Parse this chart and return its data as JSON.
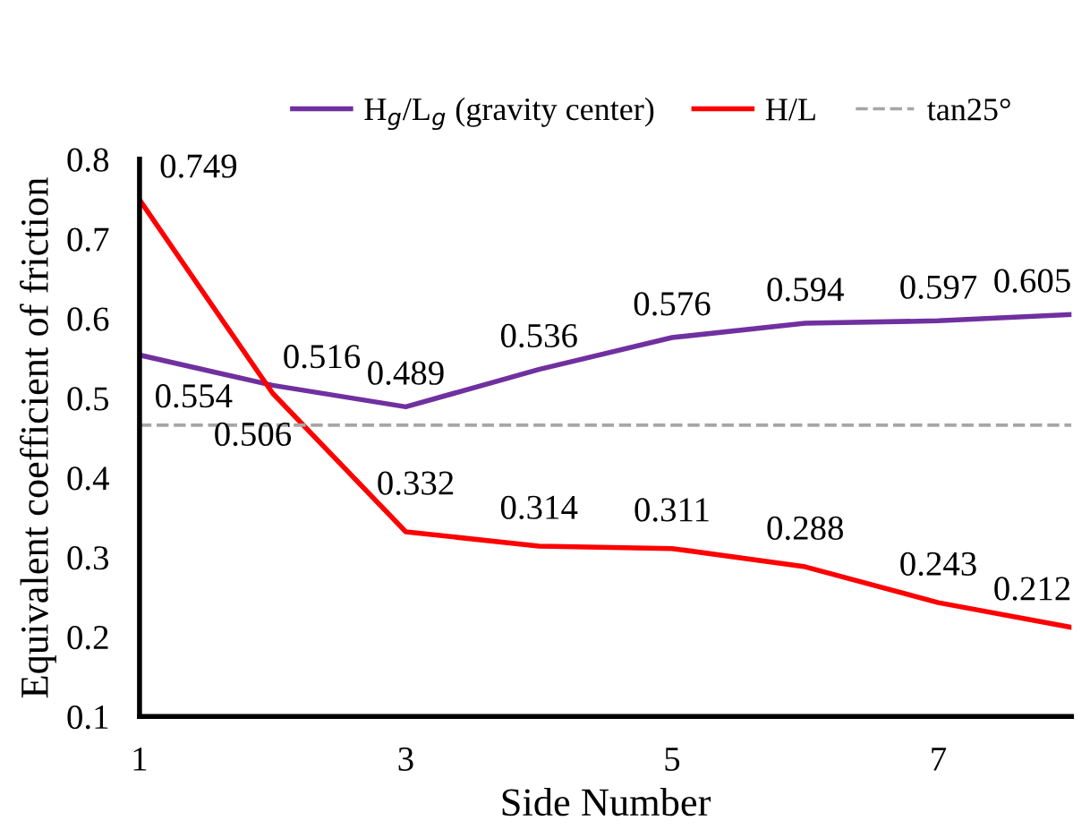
{
  "chart_data": {
    "type": "line",
    "xlabel": "Side Number",
    "ylabel": "Equivalent coefficient of friction",
    "x": [
      1,
      2,
      3,
      4,
      5,
      6,
      7,
      8
    ],
    "series": [
      {
        "name": "H$_{g}$/L$_{g}$ (gravity center)",
        "color": "#7030a0",
        "values": [
          0.554,
          0.516,
          0.489,
          0.536,
          0.576,
          0.594,
          0.597,
          0.605
        ]
      },
      {
        "name": "H/L",
        "color": "#ff0000",
        "values": [
          0.749,
          0.506,
          0.332,
          0.314,
          0.311,
          0.288,
          0.243,
          0.212
        ]
      }
    ],
    "ref_lines": [
      {
        "axis": "y",
        "value": 0.466,
        "label": "tan25°",
        "color": "#a6a6a6",
        "line_style": "dashed"
      }
    ],
    "xlim": [
      1,
      8
    ],
    "xticks": [
      1,
      3,
      5,
      7
    ],
    "ylim": [
      0.1,
      0.8
    ],
    "yticks": [
      0.1,
      0.2,
      0.3,
      0.4,
      0.5,
      0.6,
      0.7,
      0.8
    ],
    "data_labels": true,
    "legend": "top",
    "grid": false,
    "marker": "none",
    "line_style": "solid"
  }
}
